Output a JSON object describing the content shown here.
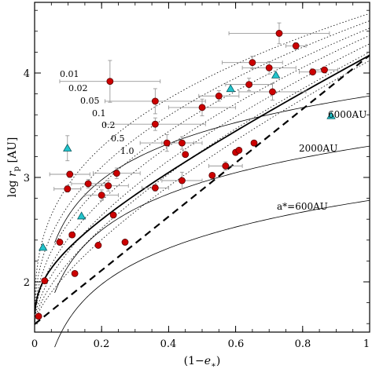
{
  "chart_data": {
    "type": "scatter",
    "title": "",
    "xlabel": "(1−e*)",
    "ylabel": "log r_p [AU]",
    "xlim": [
      0,
      1
    ],
    "ylim": [
      1.55,
      4.7
    ],
    "xticks": [
      0,
      0.2,
      0.4,
      0.6,
      0.8,
      1
    ],
    "xtick_labels": [
      "0",
      "0.2",
      "0.4",
      "0.6",
      "0.8",
      "1"
    ],
    "yticks": [
      2,
      3,
      4
    ],
    "ytick_labels": [
      "2",
      "3",
      "4"
    ],
    "grid": false,
    "series": [
      {
        "marker": "circle",
        "color": "#cc0000",
        "points": [
          {
            "x": 0.012,
            "y": 1.67
          },
          {
            "x": 0.03,
            "y": 2.01
          },
          {
            "x": 0.075,
            "y": 2.38
          },
          {
            "x": 0.098,
            "y": 2.89,
            "xerr": 0.04,
            "yerr": 0.03
          },
          {
            "x": 0.105,
            "y": 3.03,
            "xerr": 0.06,
            "yerr": 0.03
          },
          {
            "x": 0.112,
            "y": 2.45
          },
          {
            "x": 0.12,
            "y": 2.08
          },
          {
            "x": 0.16,
            "y": 2.94,
            "xerr": 0.05,
            "yerr": 0.04
          },
          {
            "x": 0.19,
            "y": 2.35
          },
          {
            "x": 0.2,
            "y": 2.83,
            "xerr": 0.05,
            "yerr": 0.05
          },
          {
            "x": 0.22,
            "y": 2.92,
            "xerr": 0.06,
            "yerr": 0.05
          },
          {
            "x": 0.225,
            "y": 3.92,
            "xerr": 0.15,
            "yerr": 0.2
          },
          {
            "x": 0.235,
            "y": 2.64
          },
          {
            "x": 0.245,
            "y": 3.04,
            "xerr": 0.07,
            "yerr": 0.05
          },
          {
            "x": 0.27,
            "y": 2.38
          },
          {
            "x": 0.36,
            "y": 2.9,
            "xerr": 0.04,
            "yerr": 0.03
          },
          {
            "x": 0.36,
            "y": 3.51,
            "xerr": 0.15,
            "yerr": 0.06
          },
          {
            "x": 0.36,
            "y": 3.73,
            "xerr": 0.15,
            "yerr": 0.12
          },
          {
            "x": 0.395,
            "y": 3.33,
            "xerr": 0.08,
            "yerr": 0.08
          },
          {
            "x": 0.44,
            "y": 3.33,
            "xerr": 0.06,
            "yerr": 0.06
          },
          {
            "x": 0.44,
            "y": 2.97,
            "xerr": 0.06,
            "yerr": 0.08
          },
          {
            "x": 0.45,
            "y": 3.22
          },
          {
            "x": 0.5,
            "y": 3.67,
            "xerr": 0.1,
            "yerr": 0.08
          },
          {
            "x": 0.53,
            "y": 3.02
          },
          {
            "x": 0.55,
            "y": 3.78,
            "xerr": 0.06,
            "yerr": 0.05
          },
          {
            "x": 0.57,
            "y": 3.11,
            "xerr": 0.05,
            "yerr": 0.04
          },
          {
            "x": 0.6,
            "y": 3.24
          },
          {
            "x": 0.61,
            "y": 3.26
          },
          {
            "x": 0.64,
            "y": 3.89,
            "xerr": 0.07,
            "yerr": 0.06
          },
          {
            "x": 0.65,
            "y": 4.1,
            "xerr": 0.09,
            "yerr": 0.06
          },
          {
            "x": 0.655,
            "y": 3.33
          },
          {
            "x": 0.7,
            "y": 4.05,
            "xerr": 0.08,
            "yerr": 0.06
          },
          {
            "x": 0.71,
            "y": 3.82,
            "xerr": 0.1,
            "yerr": 0.08
          },
          {
            "x": 0.73,
            "y": 4.38,
            "xerr": 0.15,
            "yerr": 0.1
          },
          {
            "x": 0.78,
            "y": 4.26,
            "xerr": 0.03,
            "yerr": 0.03
          },
          {
            "x": 0.83,
            "y": 4.01,
            "xerr": 0.04,
            "yerr": 0.02
          },
          {
            "x": 0.865,
            "y": 4.03,
            "xerr": 0.04,
            "yerr": 0.02
          }
        ]
      },
      {
        "marker": "triangle",
        "color": "#22c4cc",
        "points": [
          {
            "x": 0.025,
            "y": 2.33
          },
          {
            "x": 0.098,
            "y": 3.28,
            "yerr": 0.12
          },
          {
            "x": 0.14,
            "y": 2.63
          },
          {
            "x": 0.585,
            "y": 3.85
          },
          {
            "x": 0.72,
            "y": 3.98
          },
          {
            "x": 0.885,
            "y": 3.59
          }
        ]
      }
    ],
    "curves": {
      "dotted_labels": [
        "0.01",
        "0.02",
        "0.05",
        "0.1",
        "0.2",
        "0.5",
        "1.0"
      ],
      "a_star_labels": [
        "6000AU",
        "2000AU",
        "a*=600AU"
      ]
    }
  }
}
